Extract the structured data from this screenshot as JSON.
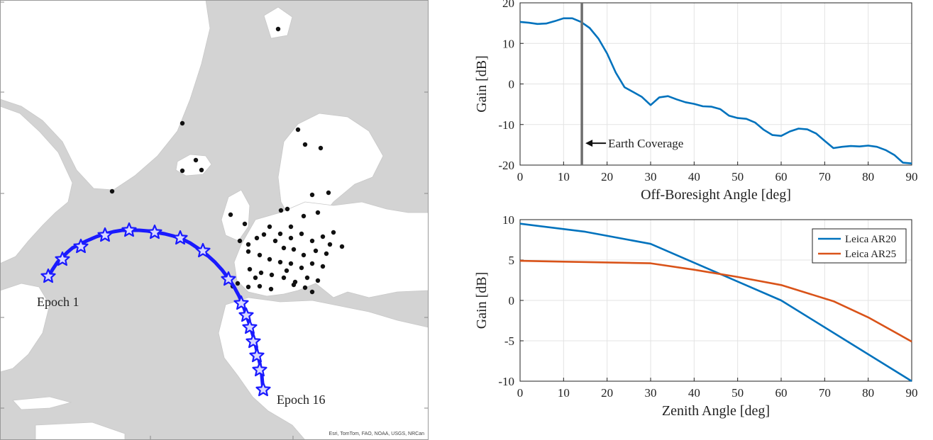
{
  "map": {
    "labels": {
      "start": "Epoch 1",
      "end": "Epoch 16"
    },
    "credit": "Esri, TomTom, FAO, NOAA, USGS, NRCan",
    "colors": {
      "land": "#ffffff",
      "sea": "#d3d3d3",
      "track": "#1a1aff",
      "station": "#111111"
    }
  },
  "chart_data": [
    {
      "type": "line",
      "title": "",
      "xlabel": "Off-Boresight Angle [deg]",
      "ylabel": "Gain [dB]",
      "xlim": [
        0,
        90
      ],
      "ylim": [
        -20,
        20
      ],
      "xticks": [
        0,
        10,
        20,
        30,
        40,
        50,
        60,
        70,
        80,
        90
      ],
      "yticks": [
        -20,
        -10,
        0,
        10,
        20
      ],
      "grid": true,
      "series": [
        {
          "color": "#0072bd",
          "x": [
            0,
            2,
            4,
            6,
            8,
            10,
            12,
            14,
            16,
            18,
            20,
            22,
            24,
            26,
            28,
            30,
            32,
            34,
            36,
            38,
            40,
            42,
            44,
            46,
            48,
            50,
            52,
            54,
            56,
            58,
            60,
            62,
            64,
            66,
            68,
            70,
            72,
            74,
            76,
            78,
            80,
            82,
            84,
            86,
            88,
            90
          ],
          "y": [
            15.3,
            15.1,
            14.8,
            14.9,
            15.5,
            16.2,
            16.2,
            15.3,
            13.8,
            11.2,
            7.5,
            2.8,
            -0.8,
            -2.0,
            -3.2,
            -5.2,
            -3.3,
            -3.0,
            -3.8,
            -4.5,
            -4.9,
            -5.5,
            -5.6,
            -6.2,
            -7.8,
            -8.4,
            -8.6,
            -9.5,
            -11.3,
            -12.6,
            -12.8,
            -11.7,
            -11.0,
            -11.2,
            -12.2,
            -14.0,
            -15.8,
            -15.5,
            -15.3,
            -15.4,
            -15.2,
            -15.5,
            -16.3,
            -17.5,
            -19.4,
            -19.6
          ]
        }
      ],
      "annotations": [
        {
          "text": "Earth Coverage",
          "x": 14.2,
          "y": -14.6,
          "line_x": 14.2
        }
      ]
    },
    {
      "type": "line",
      "title": "",
      "xlabel": "Zenith Angle [deg]",
      "ylabel": "Gain [dB]",
      "xlim": [
        0,
        90
      ],
      "ylim": [
        -10,
        10
      ],
      "xticks": [
        0,
        10,
        20,
        30,
        40,
        50,
        60,
        70,
        80,
        90
      ],
      "yticks": [
        -10,
        -5,
        0,
        5,
        10
      ],
      "grid": true,
      "legend": "top-right",
      "series": [
        {
          "name": "Leica AR20",
          "color": "#0072bd",
          "x": [
            0,
            15,
            30,
            45,
            60,
            75,
            90
          ],
          "y": [
            9.5,
            8.5,
            7.0,
            3.5,
            0.0,
            -5.0,
            -10.0
          ]
        },
        {
          "name": "Leica AR25",
          "color": "#d95319",
          "x": [
            0,
            10,
            20,
            30,
            40,
            50,
            60,
            72,
            80,
            90
          ],
          "y": [
            4.9,
            4.8,
            4.7,
            4.6,
            3.8,
            2.9,
            1.9,
            -0.1,
            -2.1,
            -5.1
          ]
        }
      ]
    }
  ]
}
